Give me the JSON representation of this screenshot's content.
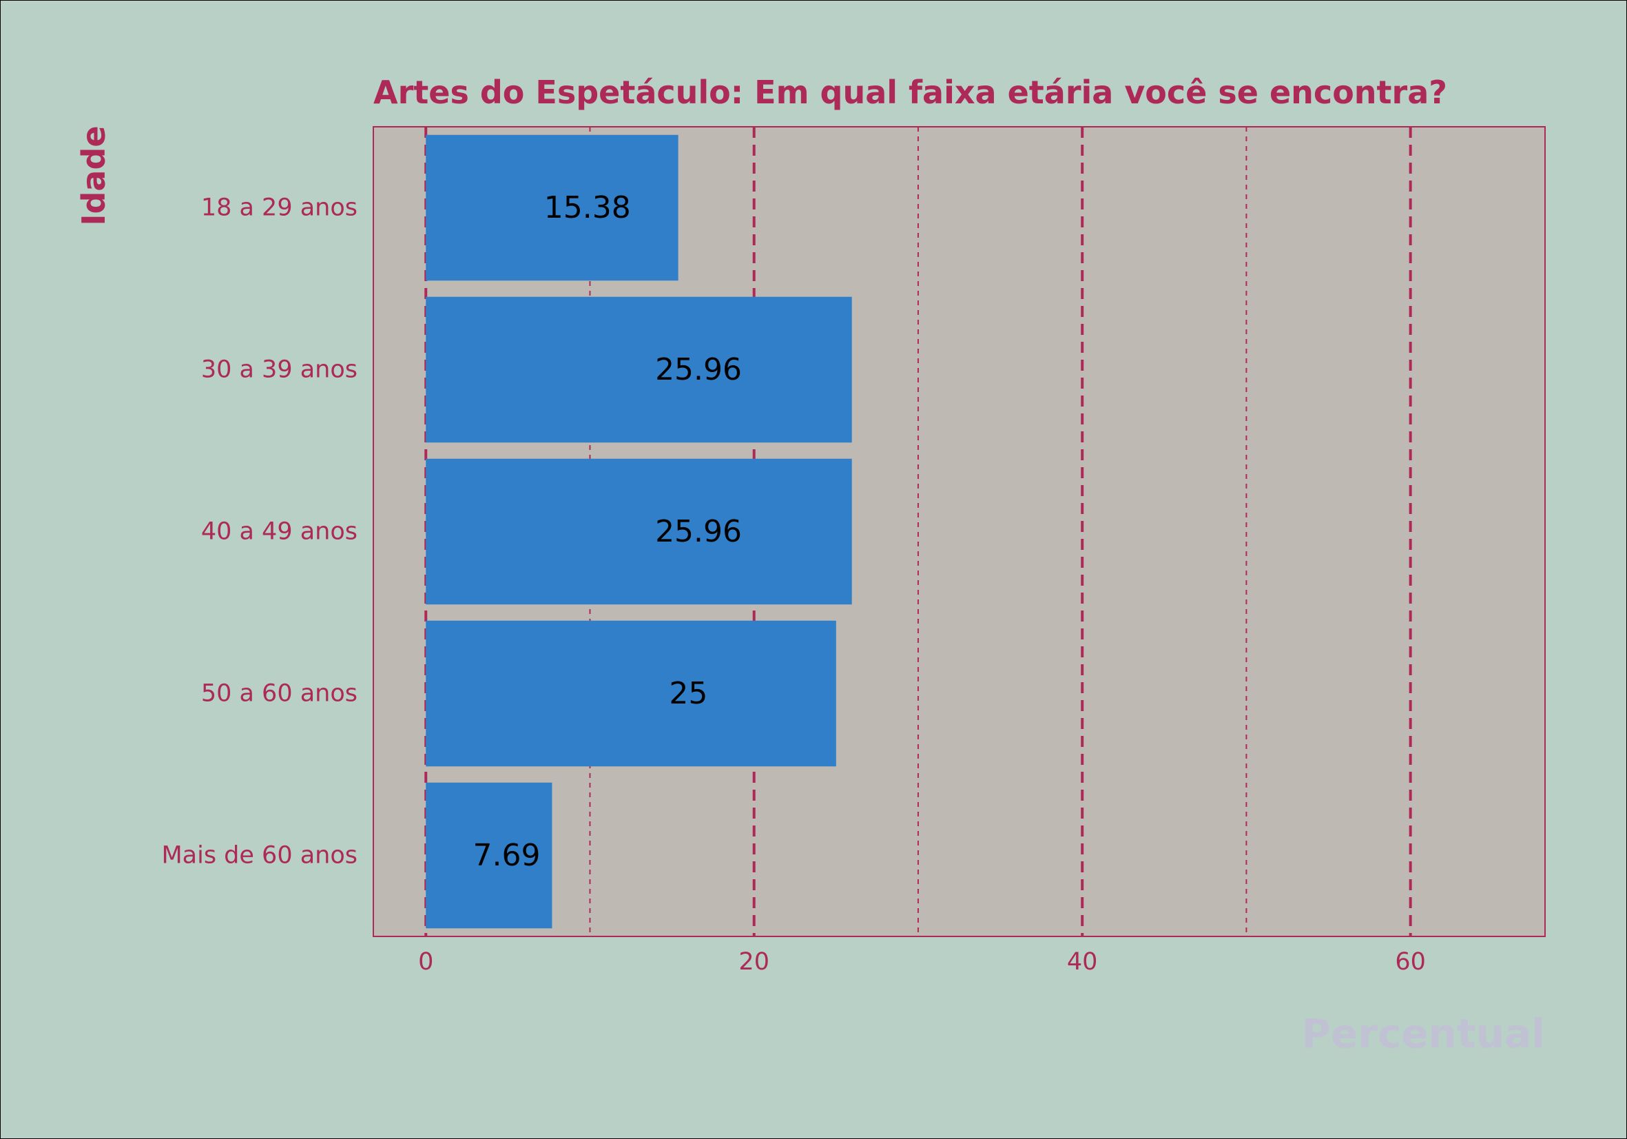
{
  "chart_data": {
    "type": "bar",
    "orientation": "horizontal",
    "title": "Artes do Espetáculo: Em qual faixa etária você se encontra?",
    "xlabel": "Percentual",
    "ylabel": "Idade",
    "categories": [
      "18 a 29 anos",
      "30 a 39 anos",
      "40 a 49 anos",
      "50 a 60 anos",
      "Mais de 60 anos"
    ],
    "values": [
      15.38,
      25.96,
      25.96,
      25,
      7.69
    ],
    "data_labels": [
      "15.38",
      "25.96",
      "25.96",
      "25",
      "7.69"
    ],
    "xlim": [
      -3.2,
      68.2
    ],
    "xticks": [
      0,
      20,
      40,
      60
    ],
    "xtick_labels": [
      "0",
      "20",
      "40",
      "60"
    ],
    "minor_grid": [
      10,
      30,
      50
    ],
    "grid": true,
    "legend": "none"
  },
  "colors": {
    "background": "#b8d0c6",
    "panel": "#bfb9b3",
    "bar": "#317fc9",
    "accent": "#ad2a58",
    "xlabel": "#c0c2d3"
  }
}
